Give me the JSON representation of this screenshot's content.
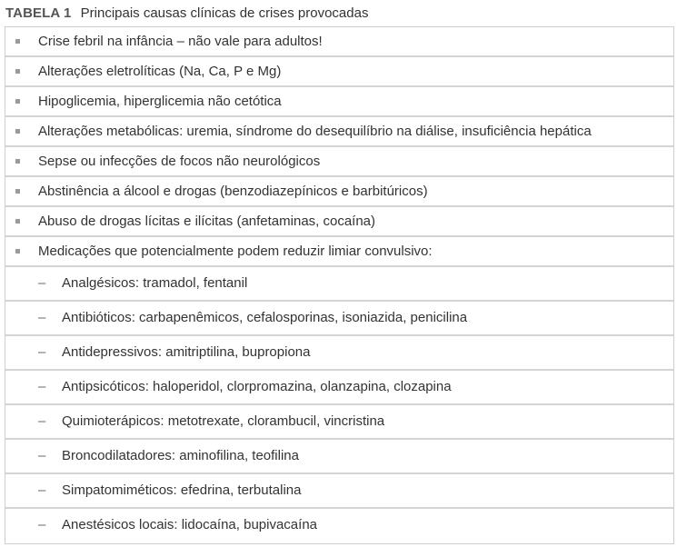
{
  "caption": {
    "label": "TABELA 1",
    "title": "Principais causas clínicas de crises provocadas"
  },
  "items": [
    "Crise febril na infância – não vale para adultos!",
    "Alterações eletrolíticas (Na, Ca, P e Mg)",
    "Hipoglicemia, hiperglicemia não cetótica",
    "Alterações metabólicas: uremia, síndrome do desequilíbrio na diálise, insuficiência hepática",
    "Sepse ou infecções de focos não neurológicos",
    "Abstinência a álcool e drogas (benzodiazepínicos e barbitúricos)",
    "Abuso de drogas lícitas e ilícitas (anfetaminas, cocaína)",
    "Medicações que potencialmente podem reduzir limiar convulsivo:"
  ],
  "subitems": [
    "Analgésicos: tramadol, fentanil",
    "Antibióticos: carbapenêmicos, cefalosporinas, isoniazida, penicilina",
    "Antidepressivos: amitriptilina, bupropiona",
    "Antipsicóticos: haloperidol, clorpromazina, olanzapina, clozapina",
    "Quimioterápicos: metotrexate, clorambucil, vincristina",
    "Broncodilatadores: aminofilina, teofilina",
    "Simpatomiméticos: efedrina, terbutalina",
    "Anestésicos locais: lidocaína, bupivacaína"
  ],
  "dash_glyph": "–"
}
